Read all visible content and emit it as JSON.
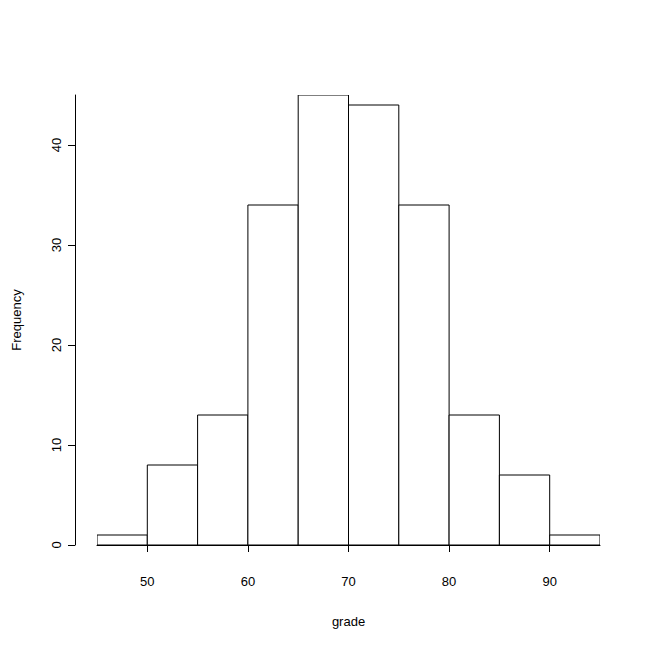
{
  "chart_data": {
    "type": "histogram",
    "x_label": "grade",
    "y_label": "Frequency",
    "bins": [
      45,
      50,
      55,
      60,
      65,
      70,
      75,
      80,
      85,
      90,
      95
    ],
    "values": [
      1,
      8,
      13,
      34,
      45,
      44,
      34,
      13,
      7,
      1
    ],
    "color": "#ffffff",
    "xlim": [
      45,
      95
    ],
    "xticks": [
      50,
      60,
      70,
      80,
      90
    ],
    "ylim": [
      0,
      45
    ],
    "yticks": [
      0,
      10,
      20,
      30,
      40
    ],
    "grid": false
  }
}
